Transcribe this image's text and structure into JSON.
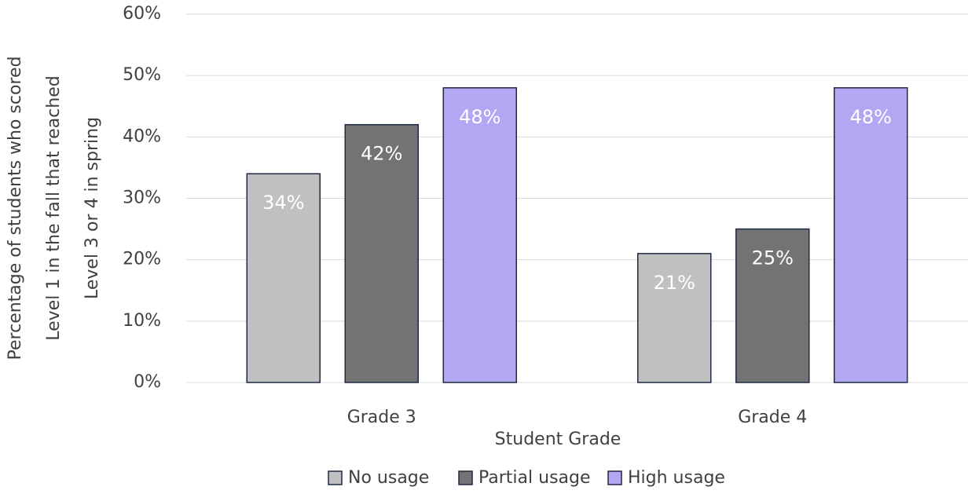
{
  "chart_data": {
    "type": "bar",
    "ylabel": [
      "Percentage of students who scored",
      "Level 1 in the fall that reached",
      "Level 3 or 4 in spring"
    ],
    "xlabel": "Student Grade",
    "categories": [
      "Grade 3",
      "Grade 4"
    ],
    "series": [
      {
        "name": "No usage",
        "color": "#c0c0c0",
        "values": [
          34,
          21
        ],
        "value_labels": [
          "34%",
          "21%"
        ]
      },
      {
        "name": "Partial usage",
        "color": "#737373",
        "values": [
          42,
          25
        ],
        "value_labels": [
          "42%",
          "25%"
        ]
      },
      {
        "name": "High usage",
        "color": "#b3a6f2",
        "values": [
          48,
          48
        ],
        "value_labels": [
          "48%",
          "48%"
        ]
      }
    ],
    "ylim": [
      0,
      60
    ],
    "yticks": [
      {
        "value": 0,
        "label": "0%"
      },
      {
        "value": 10,
        "label": "10%"
      },
      {
        "value": 20,
        "label": "20%"
      },
      {
        "value": 30,
        "label": "30%"
      },
      {
        "value": 40,
        "label": "40%"
      },
      {
        "value": 50,
        "label": "50%"
      },
      {
        "value": 60,
        "label": "60%"
      }
    ],
    "grid": true,
    "legend": "bottom"
  }
}
